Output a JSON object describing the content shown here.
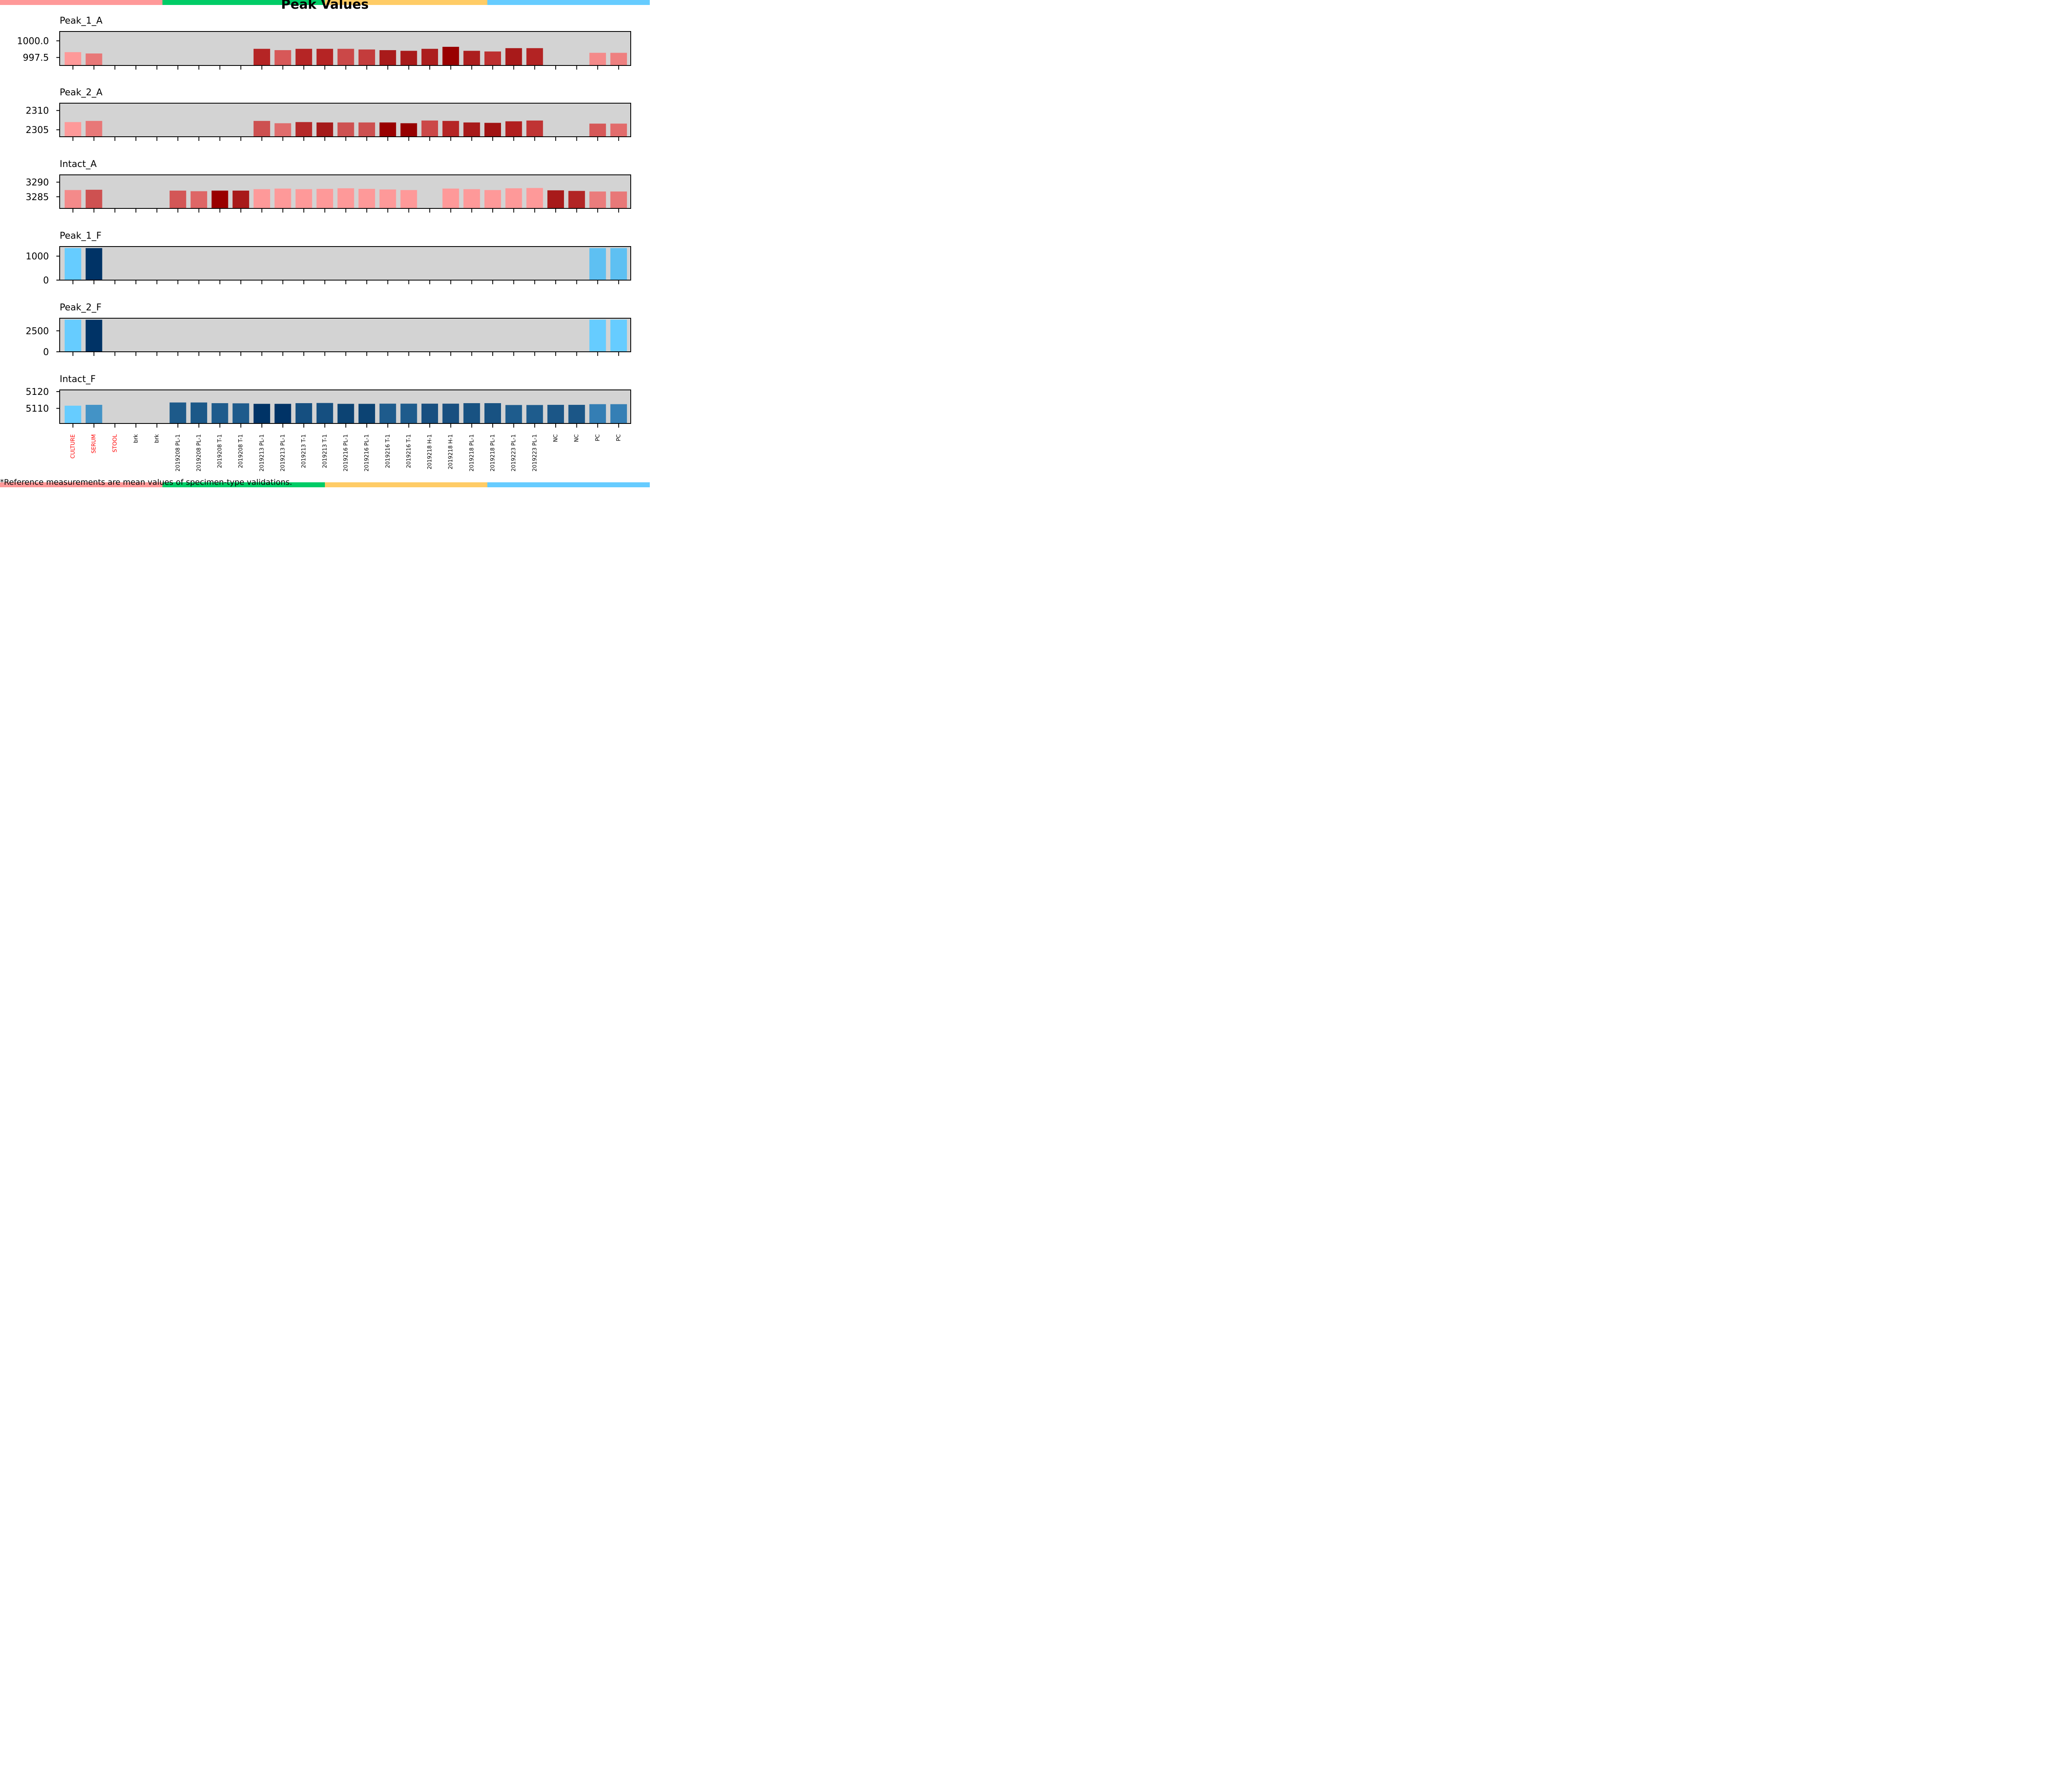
{
  "title": "Peak Values",
  "footnote": "*Reference measurements are mean values of specimen-type validations.",
  "stripe_colors": [
    "#ff9999",
    "#00cc66",
    "#ffcc66",
    "#66ccff"
  ],
  "categories": [
    "CULTURE",
    "SERUM",
    "STOOL",
    "brk",
    "brk",
    "2019208 PL-1",
    "2019208 PL-1",
    "2019208 T-1",
    "2019208 T-1",
    "2019213 PL-1",
    "2019213 PL-1",
    "2019213 T-1",
    "2019213 T-1",
    "2019216 PL-1",
    "2019216 PL-1",
    "2019216 T-1",
    "2019216 T-1",
    "2019218 H-1",
    "2019218 H-1",
    "2019218 PL-1",
    "2019218 PL-1",
    "2019223 PL-1",
    "2019223 PL-1",
    "NC",
    "NC",
    "PC",
    "PC"
  ],
  "reference_label_color": "#ff0000",
  "reference_indices": [
    0,
    1,
    2
  ],
  "chart_data": [
    {
      "type": "bar",
      "title": "Peak_1_A",
      "ylim": [
        996.3,
        1001.4
      ],
      "yticks": [
        1000.0,
        997.5
      ],
      "yticklabels": [
        "1000.0",
        "997.5"
      ],
      "values": [
        998.3,
        998.1,
        null,
        null,
        null,
        null,
        null,
        null,
        null,
        998.8,
        998.6,
        998.8,
        998.8,
        998.8,
        998.7,
        998.6,
        998.5,
        998.8,
        999.1,
        998.5,
        998.4,
        998.9,
        998.9,
        null,
        null,
        998.2,
        998.2
      ],
      "colors": [
        "#fe9999",
        "#e87878",
        null,
        null,
        null,
        null,
        null,
        null,
        null,
        "#b52525",
        "#d75858",
        "#b52525",
        "#b52424",
        "#cb4848",
        "#c43c3c",
        "#a91a1a",
        "#a81a1a",
        "#ac1e1e",
        "#990000",
        "#ac1e1e",
        "#bd2f2f",
        "#a81a1a",
        "#b32323",
        null,
        null,
        "#f48a8a",
        "#ee8080"
      ]
    },
    {
      "type": "bar",
      "title": "Peak_2_A",
      "ylim": [
        2303.2,
        2311.9
      ],
      "yticks": [
        2310,
        2305
      ],
      "yticklabels": [
        "2310",
        "2305"
      ],
      "values": [
        2307.0,
        2307.3,
        null,
        null,
        null,
        null,
        null,
        null,
        null,
        2307.3,
        2306.7,
        2307.0,
        2306.9,
        2306.9,
        2306.9,
        2306.9,
        2306.7,
        2307.4,
        2307.3,
        2306.9,
        2306.8,
        2307.2,
        2307.4,
        null,
        null,
        2306.6,
        2306.6
      ],
      "colors": [
        "#fe9999",
        "#e87878",
        null,
        null,
        null,
        null,
        null,
        null,
        null,
        "#cd5050",
        "#e06c6c",
        "#b52929",
        "#a51a1a",
        "#ce5151",
        "#cd5050",
        "#990000",
        "#960000",
        "#cb4848",
        "#b52525",
        "#a81a1a",
        "#a11313",
        "#b11f1f",
        "#c03434",
        null,
        null,
        "#d65858",
        "#e26c6c"
      ]
    },
    {
      "type": "bar",
      "title": "Intact_A",
      "ylim": [
        3281.0,
        3292.5
      ],
      "yticks": [
        3290,
        3285
      ],
      "yticklabels": [
        "3290",
        "3285"
      ],
      "values": [
        3287.3,
        3287.4,
        null,
        null,
        null,
        3287.1,
        3286.9,
        3287.1,
        3287.1,
        3287.6,
        3287.8,
        3287.6,
        3287.7,
        3287.9,
        3287.7,
        3287.5,
        3287.3,
        null,
        3287.8,
        3287.6,
        3287.3,
        3287.9,
        3288.0,
        3287.2,
        3287.0,
        3286.8,
        3286.8
      ],
      "colors": [
        "#f48a8a",
        "#ce5151",
        null,
        null,
        null,
        "#d35656",
        "#de6666",
        "#990000",
        "#a81a1a",
        "#fe9999",
        "#fe9999",
        "#fe9999",
        "#fe9999",
        "#fe9999",
        "#fe9999",
        "#fe9999",
        "#fe9999",
        null,
        "#fe9999",
        "#fe9999",
        "#fe9999",
        "#fe9999",
        "#fe9999",
        "#a81a1a",
        "#b22525",
        "#ea7c7c",
        "#e87878"
      ]
    },
    {
      "type": "bar",
      "title": "Peak_1_F",
      "ylim": [
        0,
        1400
      ],
      "yticks": [
        1000,
        0
      ],
      "yticklabels": [
        "1000",
        "0"
      ],
      "values": [
        1335,
        1335,
        null,
        null,
        null,
        null,
        null,
        null,
        null,
        null,
        null,
        null,
        null,
        null,
        null,
        null,
        null,
        null,
        null,
        null,
        null,
        null,
        null,
        null,
        null,
        1335,
        1335
      ],
      "colors": [
        "#66ccff",
        "#003366",
        null,
        null,
        null,
        null,
        null,
        null,
        null,
        null,
        null,
        null,
        null,
        null,
        null,
        null,
        null,
        null,
        null,
        null,
        null,
        null,
        null,
        null,
        null,
        "#5ec0f2",
        "#5ec0f2"
      ]
    },
    {
      "type": "bar",
      "title": "Peak_2_F",
      "ylim": [
        0,
        4000
      ],
      "yticks": [
        2500,
        0
      ],
      "yticklabels": [
        "2500",
        "0"
      ],
      "values": [
        3830,
        3820,
        null,
        null,
        null,
        null,
        null,
        null,
        null,
        null,
        null,
        null,
        null,
        null,
        null,
        null,
        null,
        null,
        null,
        null,
        null,
        null,
        null,
        null,
        null,
        3830,
        3830
      ],
      "colors": [
        "#66ccff",
        "#003366",
        null,
        null,
        null,
        null,
        null,
        null,
        null,
        null,
        null,
        null,
        null,
        null,
        null,
        null,
        null,
        null,
        null,
        null,
        null,
        null,
        null,
        null,
        null,
        "#66ccff",
        "#66ccff"
      ]
    },
    {
      "type": "bar",
      "title": "Intact_F",
      "ylim": [
        5101.0,
        5121.0
      ],
      "yticks": [
        5120,
        5110
      ],
      "yticklabels": [
        "5120",
        "5110"
      ],
      "values": [
        5111.6,
        5112.1,
        null,
        null,
        null,
        5113.5,
        5113.5,
        5113.1,
        5113.0,
        5112.7,
        5112.7,
        5113.1,
        5113.2,
        5112.7,
        5112.7,
        5112.8,
        5112.8,
        5112.8,
        5112.8,
        5113.1,
        5113.1,
        5112.0,
        5112.0,
        5112.1,
        5112.1,
        5112.5,
        5112.5
      ],
      "colors": [
        "#66ccff",
        "#4393c6",
        null,
        null,
        null,
        "#1d5a8a",
        "#1b5888",
        "#1e5b8c",
        "#1e5b8c",
        "#003366",
        "#003366",
        "#154f80",
        "#154f80",
        "#0c4373",
        "#0c4373",
        "#1e5b8c",
        "#1e5b8c",
        "#184f80",
        "#184f80",
        "#185282",
        "#185282",
        "#1e5c8d",
        "#1e5c8d",
        "#1b5687",
        "#1b5687",
        "#347eb4",
        "#357fb5"
      ]
    }
  ]
}
